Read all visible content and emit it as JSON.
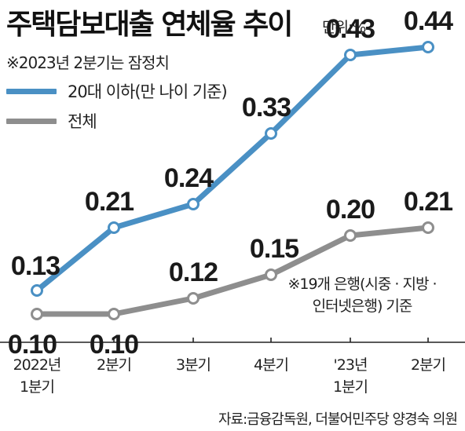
{
  "header": {
    "title": "주택담보대출 연체율 추이",
    "unit": "단위:%",
    "note": "※2023년 2분기는 잠정치"
  },
  "footer": {
    "note_line1": "※19개 은행(시중 · 지방 ·",
    "note_line2": "인터넷은행) 기준",
    "source": "자료:금융감독원, 더불어민주당 양경숙 의원"
  },
  "chart_data": {
    "type": "line",
    "title": "주택담보대출 연체율 추이",
    "categories": [
      [
        "2022년",
        "1분기"
      ],
      [
        "2분기"
      ],
      [
        "3분기"
      ],
      [
        "4분기"
      ],
      [
        "'23년",
        "1분기"
      ],
      [
        "2분기"
      ]
    ],
    "series": [
      {
        "name": "20대 이하(만 나이 기준)",
        "color": "#4a90c4",
        "values": [
          0.13,
          0.21,
          0.24,
          0.33,
          0.43,
          0.44
        ]
      },
      {
        "name": "전체",
        "color": "#8e8e8e",
        "values": [
          0.1,
          0.1,
          0.12,
          0.15,
          0.2,
          0.21
        ]
      }
    ],
    "ylim": [
      0.0,
      0.5
    ],
    "grid": false,
    "legend": "top-left"
  }
}
